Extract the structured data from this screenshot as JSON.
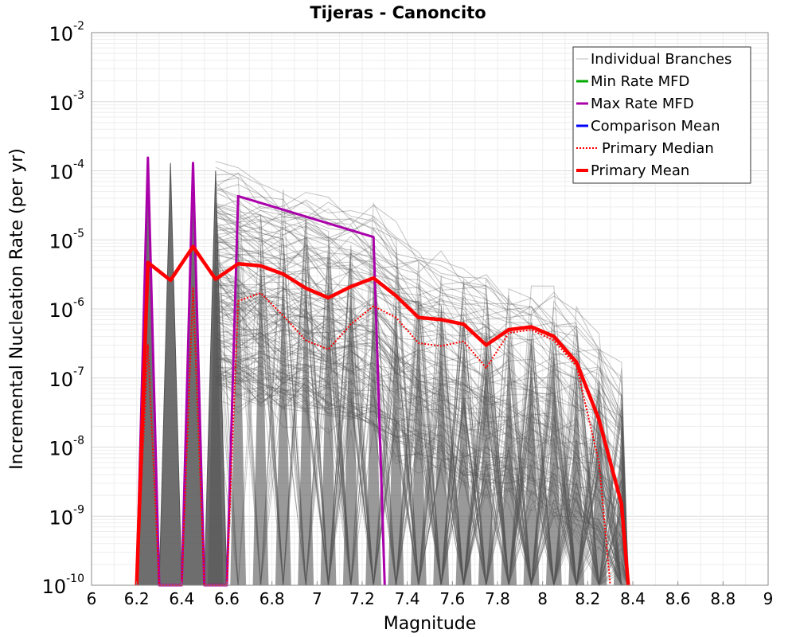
{
  "chart_data": {
    "type": "line",
    "title": "Tijeras - Canoncito",
    "xlabel": "Magnitude",
    "ylabel": "Incremental Nucleation Rate (per yr)",
    "xlim": [
      6,
      9
    ],
    "ylim": [
      1e-10,
      0.01
    ],
    "yscale": "log",
    "grid": true,
    "legend_position": "top-right",
    "x_ticks": [
      "6",
      "6.2",
      "6.4",
      "6.6",
      "6.8",
      "7",
      "7.2",
      "7.4",
      "7.6",
      "7.8",
      "8",
      "8.2",
      "8.4",
      "8.6",
      "8.8",
      "9"
    ],
    "y_ticks": [
      {
        "base": "10",
        "exp": "-10"
      },
      {
        "base": "10",
        "exp": "-9"
      },
      {
        "base": "10",
        "exp": "-8"
      },
      {
        "base": "10",
        "exp": "-7"
      },
      {
        "base": "10",
        "exp": "-6"
      },
      {
        "base": "10",
        "exp": "-5"
      },
      {
        "base": "10",
        "exp": "-4"
      },
      {
        "base": "10",
        "exp": "-3"
      },
      {
        "base": "10",
        "exp": "-2"
      }
    ],
    "series": [
      {
        "name": "Individual Branches",
        "color": "#555555",
        "style": "thin",
        "x": [
          6.25,
          6.35,
          6.45,
          6.55,
          6.65,
          6.75,
          6.85,
          6.95,
          7.05,
          7.15,
          7.25,
          7.35,
          7.45,
          7.55,
          7.65,
          7.75,
          7.85,
          7.95,
          8.05,
          8.15,
          8.25,
          8.35
        ],
        "y_high": [
          0.00015,
          0.00013,
          0.00013,
          0.0001,
          8e-05,
          6e-05,
          5e-05,
          4.5e-05,
          3.5e-05,
          3e-05,
          2.5e-05,
          1.2e-05,
          8e-06,
          6e-06,
          4e-06,
          3e-06,
          2.5e-06,
          2e-06,
          1.5e-06,
          1e-06,
          5e-07,
          1.3e-07
        ]
      },
      {
        "name": "Min Rate MFD",
        "color": "#00aa00",
        "x": [],
        "y": []
      },
      {
        "name": "Max Rate MFD",
        "color": "#aa00aa",
        "x": [
          6.2,
          6.25,
          6.3,
          6.4,
          6.45,
          6.5,
          6.6,
          6.65,
          7.25,
          7.3
        ],
        "y": [
          1e-10,
          0.000155,
          1e-10,
          1e-10,
          0.00013,
          1e-10,
          1e-10,
          4.3e-05,
          1.1e-05,
          1e-10
        ]
      },
      {
        "name": "Comparison Mean",
        "color": "#0000ff",
        "x": [],
        "y": []
      },
      {
        "name": "Primary Median",
        "color": "#ff0000",
        "style": "dotted",
        "x": [
          6.2,
          6.25,
          6.3,
          6.4,
          6.45,
          6.5,
          6.6,
          6.65,
          6.75,
          6.85,
          6.95,
          7.05,
          7.15,
          7.25,
          7.35,
          7.45,
          7.55,
          7.65,
          7.75,
          7.85,
          7.95,
          8.05,
          8.15,
          8.25,
          8.3
        ],
        "y": [
          1e-10,
          3e-07,
          1e-10,
          1e-10,
          2e-06,
          1e-10,
          1e-10,
          1.3e-06,
          1.7e-06,
          8e-07,
          3.5e-07,
          2.6e-07,
          6e-07,
          1.1e-06,
          7.5e-07,
          3.2e-07,
          2.9e-07,
          3.4e-07,
          1.4e-07,
          4.5e-07,
          5e-07,
          3.5e-07,
          1.5e-07,
          6e-09,
          1e-10
        ]
      },
      {
        "name": "Primary Mean",
        "color": "#ff0000",
        "style": "thick",
        "x": [
          6.2,
          6.25,
          6.35,
          6.45,
          6.55,
          6.65,
          6.75,
          6.85,
          6.95,
          7.05,
          7.15,
          7.25,
          7.35,
          7.45,
          7.55,
          7.65,
          7.75,
          7.85,
          7.95,
          8.05,
          8.15,
          8.25,
          8.35,
          8.38
        ],
        "y": [
          1e-10,
          4.7e-06,
          2.6e-06,
          8e-06,
          2.7e-06,
          4.5e-06,
          4.2e-06,
          3.2e-06,
          2e-06,
          1.45e-06,
          2.1e-06,
          2.8e-06,
          1.55e-06,
          7.5e-07,
          7e-07,
          6e-07,
          3e-07,
          5e-07,
          5.5e-07,
          4e-07,
          1.7e-07,
          2.5e-08,
          1.5e-09,
          1e-10
        ]
      }
    ]
  }
}
